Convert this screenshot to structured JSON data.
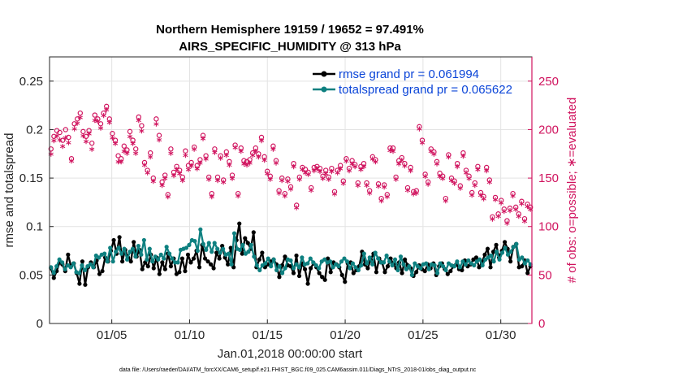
{
  "chart_data": {
    "type": "line",
    "title": "Northern Hemisphere 19159 / 19652 = 97.491%",
    "subtitle": "AIRS_SPECIFIC_HUMIDITY @ 313 hPa",
    "xlabel": "Jan.01,2018 00:00:00 start",
    "ylabel_left": "rmse and totalspread",
    "ylabel_right": "# of obs: o=possible; ∗=evaluated",
    "xlim": [
      1.0,
      32.0
    ],
    "ylim_left": [
      0,
      0.275
    ],
    "ylim_right": [
      0,
      275
    ],
    "grid": true,
    "x_ticks": [
      {
        "value": 5,
        "label": "01/05"
      },
      {
        "value": 10,
        "label": "01/10"
      },
      {
        "value": 15,
        "label": "01/15"
      },
      {
        "value": 20,
        "label": "01/20"
      },
      {
        "value": 25,
        "label": "01/25"
      },
      {
        "value": 30,
        "label": "01/30"
      }
    ],
    "y_ticks_left": [
      {
        "value": 0,
        "label": "0"
      },
      {
        "value": 0.05,
        "label": "0.05"
      },
      {
        "value": 0.1,
        "label": "0.1"
      },
      {
        "value": 0.15,
        "label": "0.15"
      },
      {
        "value": 0.2,
        "label": "0.2"
      },
      {
        "value": 0.25,
        "label": "0.25"
      }
    ],
    "y_ticks_right": [
      {
        "value": 0,
        "label": "0"
      },
      {
        "value": 50,
        "label": "50"
      },
      {
        "value": 100,
        "label": "100"
      },
      {
        "value": 150,
        "label": "150"
      },
      {
        "value": 200,
        "label": "200"
      },
      {
        "value": 250,
        "label": "250"
      }
    ],
    "legend_position": "top-right",
    "series": [
      {
        "name": "rmse grand pr = 0.061994",
        "axis": "left",
        "color": "#000000",
        "values": [
          0.057,
          0.047,
          0.054,
          0.063,
          0.061,
          0.054,
          0.071,
          0.059,
          0.062,
          0.052,
          0.041,
          0.064,
          0.04,
          0.058,
          0.063,
          0.058,
          0.065,
          0.051,
          0.054,
          0.068,
          0.064,
          0.075,
          0.086,
          0.072,
          0.089,
          0.064,
          0.076,
          0.068,
          0.064,
          0.084,
          0.069,
          0.076,
          0.056,
          0.063,
          0.059,
          0.071,
          0.057,
          0.068,
          0.051,
          0.063,
          0.056,
          0.072,
          0.059,
          0.067,
          0.051,
          0.053,
          0.067,
          0.054,
          0.071,
          0.063,
          0.067,
          0.075,
          0.058,
          0.081,
          0.067,
          0.064,
          0.061,
          0.057,
          0.073,
          0.067,
          0.08,
          0.068,
          0.061,
          0.078,
          0.058,
          0.086,
          0.103,
          0.072,
          0.088,
          0.083,
          0.077,
          0.094,
          0.058,
          0.066,
          0.073,
          0.058,
          0.061,
          0.064,
          0.066,
          0.061,
          0.048,
          0.06,
          0.069,
          0.06,
          0.059,
          0.052,
          0.07,
          0.049,
          0.062,
          0.056,
          0.041,
          0.057,
          0.062,
          0.058,
          0.052,
          0.048,
          0.045,
          0.067,
          0.053,
          0.063,
          0.061,
          0.058,
          0.05,
          0.043,
          0.062,
          0.063,
          0.052,
          0.055,
          0.059,
          0.074,
          0.061,
          0.057,
          0.066,
          0.072,
          0.053,
          0.067,
          0.063,
          0.053,
          0.059,
          0.067,
          0.061,
          0.057,
          0.063,
          0.052,
          0.066,
          0.06,
          0.057,
          0.049,
          0.053,
          0.06,
          0.056,
          0.054,
          0.061,
          0.057,
          0.062,
          0.05,
          0.059,
          0.062,
          0.056,
          0.051,
          0.054,
          0.059,
          0.061,
          0.056,
          0.055,
          0.065,
          0.059,
          0.061,
          0.066,
          0.068,
          0.058,
          0.063,
          0.071,
          0.077,
          0.058,
          0.074,
          0.081,
          0.068,
          0.075,
          0.084,
          0.077,
          0.064,
          0.079,
          0.082,
          0.058,
          0.059,
          0.065,
          0.052,
          0.059
        ]
      },
      {
        "name": "totalspread grand pr = 0.065622",
        "axis": "left",
        "color": "#0e8080",
        "values": [
          0.058,
          0.052,
          0.059,
          0.066,
          0.063,
          0.056,
          0.06,
          0.058,
          0.062,
          0.053,
          0.052,
          0.06,
          0.055,
          0.059,
          0.061,
          0.058,
          0.07,
          0.068,
          0.071,
          0.072,
          0.064,
          0.078,
          0.064,
          0.074,
          0.078,
          0.072,
          0.077,
          0.066,
          0.074,
          0.077,
          0.069,
          0.08,
          0.071,
          0.086,
          0.066,
          0.077,
          0.064,
          0.069,
          0.066,
          0.071,
          0.067,
          0.079,
          0.072,
          0.067,
          0.063,
          0.063,
          0.076,
          0.077,
          0.078,
          0.081,
          0.086,
          0.085,
          0.075,
          0.097,
          0.082,
          0.076,
          0.083,
          0.074,
          0.083,
          0.077,
          0.073,
          0.077,
          0.071,
          0.072,
          0.061,
          0.093,
          0.077,
          0.076,
          0.081,
          0.072,
          0.074,
          0.081,
          0.069,
          0.06,
          0.055,
          0.06,
          0.062,
          0.067,
          0.059,
          0.066,
          0.055,
          0.059,
          0.052,
          0.057,
          0.066,
          0.065,
          0.057,
          0.061,
          0.058,
          0.068,
          0.061,
          0.062,
          0.067,
          0.063,
          0.06,
          0.057,
          0.064,
          0.066,
          0.063,
          0.064,
          0.058,
          0.061,
          0.059,
          0.064,
          0.067,
          0.064,
          0.057,
          0.062,
          0.058,
          0.055,
          0.06,
          0.072,
          0.062,
          0.068,
          0.061,
          0.073,
          0.067,
          0.063,
          0.063,
          0.07,
          0.064,
          0.06,
          0.066,
          0.055,
          0.069,
          0.061,
          0.056,
          0.059,
          0.05,
          0.062,
          0.059,
          0.057,
          0.061,
          0.062,
          0.056,
          0.061,
          0.06,
          0.052,
          0.062,
          0.059,
          0.055,
          0.062,
          0.06,
          0.059,
          0.064,
          0.058,
          0.064,
          0.061,
          0.065,
          0.062,
          0.06,
          0.064,
          0.066,
          0.06,
          0.066,
          0.068,
          0.07,
          0.064,
          0.074,
          0.066,
          0.073,
          0.078,
          0.071,
          0.074,
          0.079,
          0.082,
          0.066,
          0.068,
          0.062,
          0.065,
          0.061
        ]
      },
      {
        "name": "possible",
        "axis": "right",
        "marker": "o",
        "color": "#d0135e",
        "values": [
          180,
          193,
          199,
          197,
          189,
          200,
          192,
          170,
          206,
          211,
          217,
          198,
          193,
          199,
          186,
          215,
          211,
          206,
          217,
          224,
          211,
          196,
          189,
          173,
          170,
          183,
          179,
          198,
          189,
          180,
          213,
          204,
          166,
          158,
          176,
          150,
          211,
          194,
          146,
          153,
          133,
          180,
          156,
          162,
          158,
          151,
          178,
          163,
          166,
          182,
          163,
          169,
          194,
          173,
          151,
          134,
          180,
          151,
          173,
          148,
          177,
          167,
          153,
          184,
          134,
          181,
          168,
          167,
          169,
          176,
          181,
          175,
          192,
          172,
          157,
          152,
          183,
          168,
          137,
          150,
          134,
          149,
          141,
          165,
          122,
          151,
          161,
          159,
          156,
          140,
          161,
          162,
          160,
          152,
          158,
          151,
          160,
          136,
          158,
          163,
          147,
          170,
          160,
          168,
          164,
          145,
          162,
          165,
          145,
          137,
          172,
          169,
          144,
          129,
          143,
          133,
          181,
          181,
          151,
          168,
          171,
          165,
          140,
          161,
          136,
          137,
          203,
          189,
          154,
          146,
          180,
          177,
          167,
          155,
          152,
          129,
          174,
          150,
          147,
          165,
          142,
          176,
          158,
          152,
          135,
          145,
          162,
          135,
          131,
          161,
          148,
          110,
          130,
          113,
          127,
          118,
          106,
          119,
          134,
          120,
          113,
          126,
          108,
          123,
          120
        ]
      },
      {
        "name": "evaluated",
        "axis": "right",
        "marker": "*",
        "color": "#d0135e",
        "values": [
          173,
          187,
          192,
          188,
          181,
          190,
          185,
          166,
          199,
          205,
          211,
          192,
          186,
          194,
          178,
          208,
          207,
          200,
          213,
          219,
          206,
          190,
          184,
          165,
          165,
          176,
          174,
          191,
          184,
          174,
          208,
          197,
          162,
          154,
          170,
          145,
          204,
          188,
          141,
          148,
          129,
          174,
          151,
          157,
          153,
          146,
          172,
          157,
          161,
          178,
          158,
          164,
          189,
          168,
          147,
          129,
          175,
          146,
          169,
          144,
          172,
          162,
          148,
          180,
          130,
          176,
          163,
          162,
          164,
          172,
          176,
          170,
          187,
          167,
          153,
          147,
          178,
          164,
          133,
          146,
          130,
          145,
          137,
          160,
          118,
          147,
          157,
          154,
          152,
          136,
          156,
          158,
          155,
          148,
          153,
          147,
          155,
          132,
          154,
          158,
          143,
          166,
          156,
          163,
          160,
          141,
          157,
          160,
          141,
          133,
          168,
          165,
          140,
          125,
          139,
          129,
          177,
          176,
          147,
          163,
          167,
          161,
          136,
          156,
          132,
          133,
          199,
          185,
          150,
          142,
          176,
          173,
          163,
          150,
          148,
          125,
          170,
          146,
          143,
          160,
          138,
          171,
          154,
          148,
          131,
          141,
          157,
          131,
          127,
          156,
          144,
          106,
          126,
          109,
          123,
          114,
          102,
          115,
          130,
          116,
          109,
          122,
          104,
          119,
          116
        ]
      }
    ],
    "footnote": "data file: /Users/raeder/DAI/ATM_forcXX/CAM6_setup/f.e21.FHIST_BGC.f09_025.CAM6assim.011/Diags_NTrS_2018-01/obs_diag_output.nc"
  }
}
